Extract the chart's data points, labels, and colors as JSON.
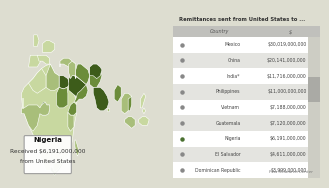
{
  "title": "Remittances sent from United States to ...",
  "col_country": "Country",
  "col_value": "$",
  "countries": [
    "Mexico",
    "China",
    "India*",
    "Philippines",
    "Vietnam",
    "Guatemala",
    "Nigeria",
    "El Salvador",
    "Dominican Republic"
  ],
  "values": [
    "$30,019,000,000",
    "$20,141,000,000",
    "$11,716,000,000",
    "$11,000,000,000",
    "$7,188,000,000",
    "$7,120,000,000",
    "$6,191,000,000",
    "$4,611,000,000",
    "$3,999,000,000"
  ],
  "highlight_country": "Nigeria",
  "highlight_text1": "Nigeria",
  "highlight_text2": "Received $6,191,000,000",
  "highlight_text3": "from United States",
  "map_bg": "#ddddd0",
  "water_color": "#e8e8e0",
  "col1_green": "#3d5c1a",
  "col2_green": "#6b8c3a",
  "col3_green": "#a8be7a",
  "col4_green": "#c8d8a0",
  "nigeria_green": "#4a7030",
  "table_bg": "#f2f2ee",
  "header_bg": "#c0c0bc",
  "row_even_bg": "#ffffff",
  "row_odd_bg": "#e4e4e0",
  "dot_color_normal": "#888888",
  "dot_color_highlight": "#4a7030",
  "text_color": "#333333",
  "value_color": "#555555",
  "source_text": "Pew Research Center",
  "map_split": 0.51,
  "table_split": 0.49
}
